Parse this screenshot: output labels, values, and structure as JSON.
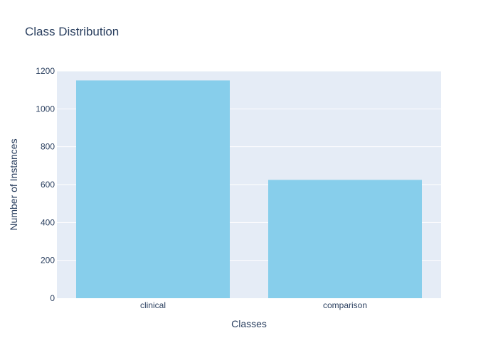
{
  "chart_data": {
    "type": "bar",
    "title": "Class Distribution",
    "xlabel": "Classes",
    "ylabel": "Number of Instances",
    "categories": [
      "clinical",
      "comparison"
    ],
    "values": [
      1150,
      625
    ],
    "ylim": [
      0,
      1200
    ],
    "yticks": [
      0,
      200,
      400,
      600,
      800,
      1000,
      1200
    ],
    "grid": true,
    "colors": {
      "bar": "#87ceeb",
      "plot_background": "#e5ecf6",
      "grid": "#ffffff",
      "text": "#2a3f5f"
    }
  }
}
